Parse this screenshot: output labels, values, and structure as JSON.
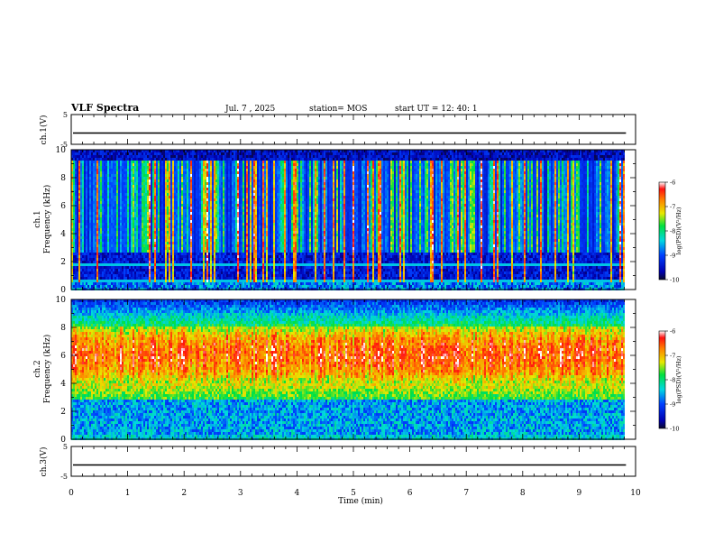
{
  "header": {
    "title": "VLF Spectra",
    "date": "Jul. 7 , 2025",
    "station": "station= MOS",
    "start": "start UT =  12: 40: 1"
  },
  "chart_data": [
    {
      "type": "line",
      "ylabel": "ch.1(V)",
      "ylim": [
        -5,
        5
      ],
      "yticks": [
        "5",
        "-5"
      ],
      "level": 0,
      "color": "#000000"
    },
    {
      "type": "heatmap",
      "ylabel": "ch.1\nFrequency (kHz)",
      "ylim": [
        0,
        10
      ],
      "yticks": [
        "0",
        "2",
        "4",
        "6",
        "8",
        "10"
      ],
      "colorbar": {
        "label": "log(PSD)(V²/Hz)",
        "range": [
          -10,
          -6
        ],
        "ticks": [
          "-6",
          "-7",
          "-8",
          "-9",
          "-10"
        ]
      },
      "profile": "sparse-bursts",
      "peak_band_khz": [
        2,
        10
      ]
    },
    {
      "type": "heatmap",
      "ylabel": "ch.2\nFrequency (kHz)",
      "ylim": [
        0,
        10
      ],
      "yticks": [
        "0",
        "2",
        "4",
        "6",
        "8",
        "10"
      ],
      "colorbar": {
        "label": "log(PSD)(V²/Hz)",
        "range": [
          -10,
          -6
        ],
        "ticks": [
          "-6",
          "-7",
          "-8",
          "-9",
          "-10"
        ]
      },
      "profile": "dense-broadband",
      "peak_band_khz": [
        4,
        8
      ]
    },
    {
      "type": "line",
      "ylabel": "ch.3(V)",
      "ylim": [
        -5,
        5
      ],
      "yticks": [
        "5",
        "-5"
      ],
      "level": 0,
      "color": "#000000"
    }
  ],
  "xaxis": {
    "label": "Time (min)",
    "xlim": [
      0,
      10
    ],
    "ticks": [
      "0",
      "1",
      "2",
      "3",
      "4",
      "5",
      "6",
      "7",
      "8",
      "9",
      "10"
    ],
    "data_end_min": 9.83
  }
}
